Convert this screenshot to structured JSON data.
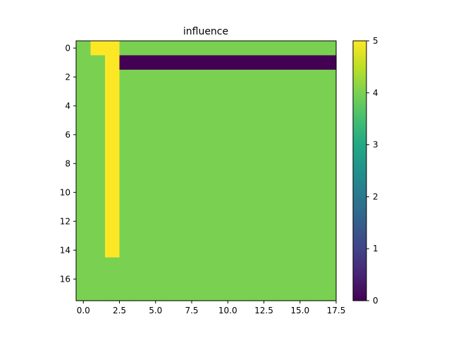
{
  "chart_data": {
    "type": "heatmap",
    "title": "influence",
    "xlabel": "",
    "ylabel": "",
    "x_ticks": [
      "0.0",
      "2.5",
      "5.0",
      "7.5",
      "10.0",
      "12.5",
      "15.0",
      "17.5"
    ],
    "y_ticks": [
      "0",
      "2",
      "4",
      "6",
      "8",
      "10",
      "12",
      "14",
      "16"
    ],
    "xlim": [
      -0.5,
      17.5
    ],
    "ylim": [
      17.5,
      -0.5
    ],
    "colorbar": {
      "colormap": "viridis",
      "range": [
        0,
        5
      ],
      "ticks": [
        "0",
        "1",
        "2",
        "3",
        "4",
        "5"
      ]
    },
    "grid": false,
    "background_value": 4,
    "regions": [
      {
        "value": 5,
        "rows": [
          0,
          0
        ],
        "cols": [
          1,
          2
        ]
      },
      {
        "value": 5,
        "rows": [
          1,
          14
        ],
        "cols": [
          2,
          2
        ]
      },
      {
        "value": 0,
        "rows": [
          1,
          1
        ],
        "cols": [
          3,
          17
        ]
      }
    ]
  }
}
